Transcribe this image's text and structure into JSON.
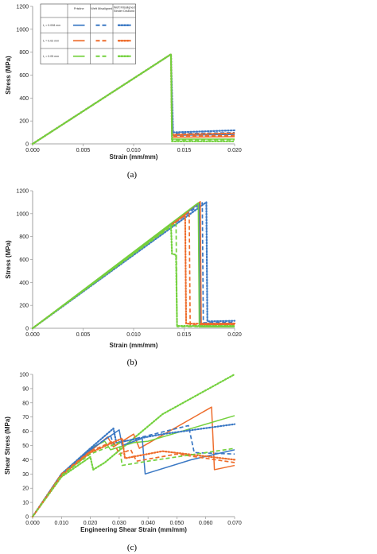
{
  "colors": {
    "blue": "#3a78c4",
    "orange": "#ee6c2b",
    "green": "#73d13d"
  },
  "legend": {
    "col_headers": [
      "Pristine",
      "Weft Misaligned",
      "Weft Misaligned\nBinder Disbond"
    ],
    "row_labels": [
      "t₁ = 0.008 mm",
      "t₁ = 0.02 mm",
      "t₁ = 0.05 mm"
    ]
  },
  "chart_data": [
    {
      "panel_label": "(a)",
      "type": "line",
      "xlabel": "Strain (mm/mm)",
      "ylabel": "Stress (MPa)",
      "xlim": [
        0,
        0.02
      ],
      "ylim": [
        0,
        1200
      ],
      "xticks": [
        "0.000",
        "0.005",
        "0.010",
        "0.015",
        "0.020"
      ],
      "yticks": [
        "0",
        "200",
        "400",
        "600",
        "800",
        "1000",
        "1200"
      ],
      "legend_placement": "top-left",
      "series": [
        {
          "color": "blue",
          "style": "solid",
          "points": [
            [
              0,
              0
            ],
            [
              0.0137,
              782
            ],
            [
              0.0138,
              75
            ],
            [
              0.02,
              82
            ]
          ]
        },
        {
          "color": "blue",
          "style": "dashed",
          "points": [
            [
              0,
              0
            ],
            [
              0.0137,
              782
            ],
            [
              0.0138,
              88
            ],
            [
              0.02,
              98
            ]
          ]
        },
        {
          "color": "blue",
          "style": "dotted",
          "points": [
            [
              0,
              0
            ],
            [
              0.0137,
              782
            ],
            [
              0.0139,
              100
            ],
            [
              0.02,
              118
            ]
          ]
        },
        {
          "color": "orange",
          "style": "solid",
          "points": [
            [
              0,
              0
            ],
            [
              0.0137,
              782
            ],
            [
              0.0138,
              58
            ],
            [
              0.02,
              62
            ]
          ]
        },
        {
          "color": "orange",
          "style": "dashed",
          "points": [
            [
              0,
              0
            ],
            [
              0.0137,
              782
            ],
            [
              0.0138,
              68
            ],
            [
              0.02,
              72
            ]
          ]
        },
        {
          "color": "orange",
          "style": "dotted",
          "points": [
            [
              0,
              0
            ],
            [
              0.0137,
              782
            ],
            [
              0.0138,
              80
            ],
            [
              0.02,
              92
            ]
          ]
        },
        {
          "color": "green",
          "style": "solid",
          "points": [
            [
              0,
              0
            ],
            [
              0.0137,
              782
            ],
            [
              0.0138,
              42
            ],
            [
              0.02,
              42
            ]
          ]
        },
        {
          "color": "green",
          "style": "dashed",
          "points": [
            [
              0,
              0
            ],
            [
              0.0137,
              782
            ],
            [
              0.0138,
              34
            ],
            [
              0.02,
              36
            ]
          ]
        },
        {
          "color": "green",
          "style": "dotted",
          "points": [
            [
              0,
              0
            ],
            [
              0.0137,
              782
            ],
            [
              0.0138,
              22
            ],
            [
              0.02,
              22
            ]
          ]
        }
      ]
    },
    {
      "panel_label": "(b)",
      "type": "line",
      "xlabel": "Strain (mm/mm)",
      "ylabel": "Stress (MPa)",
      "xlim": [
        0,
        0.02
      ],
      "ylim": [
        0,
        1200
      ],
      "xticks": [
        "0.000",
        "0.005",
        "0.010",
        "0.015",
        "0.020"
      ],
      "yticks": [
        "0",
        "200",
        "400",
        "600",
        "800",
        "1000",
        "1200"
      ],
      "series": [
        {
          "color": "blue",
          "style": "solid",
          "points": [
            [
              0,
              0
            ],
            [
              0.0165,
              1090
            ],
            [
              0.0166,
              40
            ],
            [
              0.02,
              42
            ]
          ]
        },
        {
          "color": "blue",
          "style": "dashed",
          "points": [
            [
              0,
              0
            ],
            [
              0.0168,
              1095
            ],
            [
              0.0169,
              48
            ],
            [
              0.02,
              52
            ]
          ]
        },
        {
          "color": "blue",
          "style": "dotted",
          "points": [
            [
              0,
              0
            ],
            [
              0.0172,
              1100
            ],
            [
              0.0173,
              60
            ],
            [
              0.02,
              65
            ]
          ]
        },
        {
          "color": "orange",
          "style": "solid",
          "points": [
            [
              0,
              0
            ],
            [
              0.0166,
              1105
            ],
            [
              0.0167,
              32
            ],
            [
              0.02,
              34
            ]
          ]
        },
        {
          "color": "orange",
          "style": "dashed",
          "points": [
            [
              0,
              0
            ],
            [
              0.0155,
              1020
            ],
            [
              0.0156,
              28
            ],
            [
              0.02,
              30
            ]
          ]
        },
        {
          "color": "orange",
          "style": "dotted",
          "points": [
            [
              0,
              0
            ],
            [
              0.0151,
              990
            ],
            [
              0.0152,
              40
            ],
            [
              0.02,
              42
            ]
          ]
        },
        {
          "color": "green",
          "style": "solid",
          "points": [
            [
              0,
              0
            ],
            [
              0.0164,
              1095
            ],
            [
              0.0165,
              12
            ],
            [
              0.02,
              12
            ]
          ]
        },
        {
          "color": "green",
          "style": "dashed",
          "points": [
            [
              0,
              0
            ],
            [
              0.0142,
              920
            ],
            [
              0.0143,
              15
            ],
            [
              0.02,
              15
            ]
          ]
        },
        {
          "color": "green",
          "style": "dotted",
          "points": [
            [
              0,
              0
            ],
            [
              0.0137,
              900
            ],
            [
              0.0138,
              650
            ],
            [
              0.0142,
              640
            ],
            [
              0.0143,
              20
            ],
            [
              0.02,
              20
            ]
          ]
        }
      ]
    },
    {
      "panel_label": "(c)",
      "type": "line",
      "xlabel": "Engineering Shear Strain (mm/mm)",
      "ylabel": "Shear Stress (MPa)",
      "xlim": [
        0,
        0.07
      ],
      "ylim": [
        0,
        100
      ],
      "xticks": [
        "0.000",
        "0.010",
        "0.020",
        "0.030",
        "0.040",
        "0.050",
        "0.060",
        "0.070"
      ],
      "yticks": [
        "0",
        "10",
        "20",
        "30",
        "40",
        "50",
        "60",
        "70",
        "80",
        "90",
        "100"
      ],
      "series": [
        {
          "color": "green",
          "style": "dotted",
          "points": [
            [
              0,
              0
            ],
            [
              0.01,
              28
            ],
            [
              0.02,
              42
            ],
            [
              0.021,
              33
            ],
            [
              0.025,
              38
            ],
            [
              0.045,
              72
            ],
            [
              0.07,
              100
            ]
          ]
        },
        {
          "color": "orange",
          "style": "solid",
          "points": [
            [
              0,
              0
            ],
            [
              0.01,
              30
            ],
            [
              0.02,
              46
            ],
            [
              0.026,
              56
            ],
            [
              0.028,
              49
            ],
            [
              0.035,
              58
            ],
            [
              0.037,
              48
            ],
            [
              0.062,
              77
            ],
            [
              0.063,
              33
            ],
            [
              0.07,
              36
            ]
          ]
        },
        {
          "color": "green",
          "style": "solid",
          "points": [
            [
              0,
              0
            ],
            [
              0.01,
              30
            ],
            [
              0.02,
              48
            ],
            [
              0.025,
              53
            ],
            [
              0.027,
              47
            ],
            [
              0.035,
              52
            ],
            [
              0.04,
              53
            ],
            [
              0.07,
              71
            ]
          ]
        },
        {
          "color": "blue",
          "style": "solid",
          "points": [
            [
              0,
              0
            ],
            [
              0.01,
              30
            ],
            [
              0.02,
              47
            ],
            [
              0.03,
              61
            ],
            [
              0.031,
              50
            ],
            [
              0.038,
              55
            ],
            [
              0.039,
              30
            ],
            [
              0.055,
              40
            ],
            [
              0.07,
              47
            ]
          ]
        },
        {
          "color": "blue",
          "style": "dotted",
          "points": [
            [
              0,
              0
            ],
            [
              0.01,
              30
            ],
            [
              0.02,
              48
            ],
            [
              0.028,
              62
            ],
            [
              0.029,
              52
            ],
            [
              0.045,
              58
            ],
            [
              0.07,
              65
            ]
          ]
        },
        {
          "color": "blue",
          "style": "dashed",
          "points": [
            [
              0,
              0
            ],
            [
              0.01,
              30
            ],
            [
              0.02,
              47
            ],
            [
              0.027,
              57
            ],
            [
              0.028,
              51
            ],
            [
              0.054,
              64
            ],
            [
              0.056,
              45
            ],
            [
              0.07,
              44
            ]
          ]
        },
        {
          "color": "orange",
          "style": "dashed",
          "points": [
            [
              0,
              0
            ],
            [
              0.01,
              30
            ],
            [
              0.02,
              46
            ],
            [
              0.028,
              53
            ],
            [
              0.03,
              44
            ],
            [
              0.034,
              47
            ],
            [
              0.036,
              39
            ],
            [
              0.05,
              44
            ],
            [
              0.07,
              38
            ]
          ]
        },
        {
          "color": "orange",
          "style": "dotted",
          "points": [
            [
              0,
              0
            ],
            [
              0.01,
              29
            ],
            [
              0.02,
              45
            ],
            [
              0.031,
              55
            ],
            [
              0.032,
              41
            ],
            [
              0.045,
              46
            ],
            [
              0.07,
              40
            ]
          ]
        },
        {
          "color": "green",
          "style": "dashed",
          "points": [
            [
              0,
              0
            ],
            [
              0.01,
              29
            ],
            [
              0.02,
              44
            ],
            [
              0.03,
              52
            ],
            [
              0.031,
              36
            ],
            [
              0.04,
              39
            ],
            [
              0.07,
              48
            ]
          ]
        }
      ]
    }
  ]
}
